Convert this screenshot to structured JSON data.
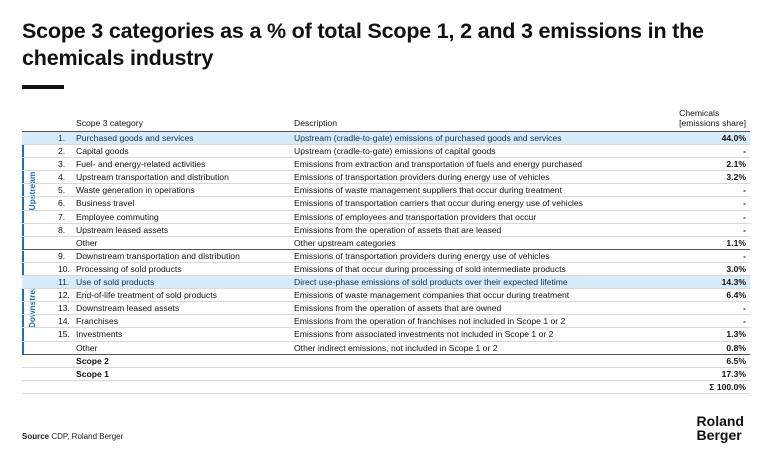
{
  "title": "Scope 3 categories as a % of total Scope 1, 2 and 3 emissions in the chemicals industry",
  "table": {
    "headers": {
      "category": "Scope 3 category",
      "description": "Description",
      "value_line1": "Chemicals",
      "value_line2": "[emissions share]"
    },
    "groups": {
      "upstream": "Upstream",
      "downstream": "Downstream"
    },
    "rows": [
      {
        "num": "1.",
        "category": "Purchased goods and services",
        "description": "Upstream (cradle-to-gate) emissions of purchased goods and services",
        "value": "44.0%"
      },
      {
        "num": "2.",
        "category": "Capital goods",
        "description": "Upstream (cradle-to-gate) emissions of capital goods",
        "value": "-"
      },
      {
        "num": "3.",
        "category": "Fuel- and energy-related activities",
        "description": "Emissions from extraction and transportation of fuels and energy purchased",
        "value": "2.1%"
      },
      {
        "num": "4.",
        "category": "Upstream transportation and distribution",
        "description": "Emissions of transportation providers during energy use of vehicles",
        "value": "3.2%"
      },
      {
        "num": "5.",
        "category": "Waste generation in operations",
        "description": "Emissions of waste management suppliers that occur during treatment",
        "value": "-"
      },
      {
        "num": "6.",
        "category": "Business travel",
        "description": "Emissions of transportation carriers that occur during energy use of vehicles",
        "value": "-"
      },
      {
        "num": "7.",
        "category": "Employee commuting",
        "description": "Emissions of employees and transportation providers that occur",
        "value": "-"
      },
      {
        "num": "8.",
        "category": "Upstream leased assets",
        "description": "Emissions from the operation of assets that are leased",
        "value": "-"
      },
      {
        "num": "",
        "category": "Other",
        "description": "Other upstream categories",
        "value": "1.1%"
      },
      {
        "num": "9.",
        "category": "Downstream transportation and distribution",
        "description": "Emissions of transportation providers during energy use of vehicles",
        "value": "-"
      },
      {
        "num": "10.",
        "category": "Processing of sold products",
        "description": "Emissions of that occur during processing of sold intermediate products",
        "value": "3.0%"
      },
      {
        "num": "11.",
        "category": "Use of sold products",
        "description": "Direct use-phase emissions of sold products over their expected lifetime",
        "value": "14.3%"
      },
      {
        "num": "12.",
        "category": "End-of-life treatment of sold products",
        "description": "Emissions of waste management companies that occur during treatment",
        "value": "6.4%"
      },
      {
        "num": "13.",
        "category": "Downstream leased assets",
        "description": "Emissions from the operation of assets that are owned",
        "value": "-"
      },
      {
        "num": "14.",
        "category": "Franchises",
        "description": "Emissions from the operation of franchises not included in Scope 1 or 2",
        "value": "-"
      },
      {
        "num": "15.",
        "category": "Investments",
        "description": "Emissions from associated investments not included in Scope 1 or 2",
        "value": "1.3%"
      },
      {
        "num": "",
        "category": "Other",
        "description": "Other indirect emissions, not included in Scope 1 or 2",
        "value": "0.8%"
      },
      {
        "num": "",
        "category": "Scope 2",
        "description": "",
        "value": "6.5%"
      },
      {
        "num": "",
        "category": "Scope 1",
        "description": "",
        "value": "17.3%"
      },
      {
        "num": "",
        "category": "",
        "description": "",
        "value": "Σ 100.0%"
      }
    ]
  },
  "source": {
    "label": "Source",
    "text": "CDP, Roland Berger"
  },
  "logo": {
    "line1": "Roland",
    "line2": "Berger"
  },
  "colors": {
    "accent": "#1d6fb8",
    "highlight": "#d8ebf8"
  }
}
